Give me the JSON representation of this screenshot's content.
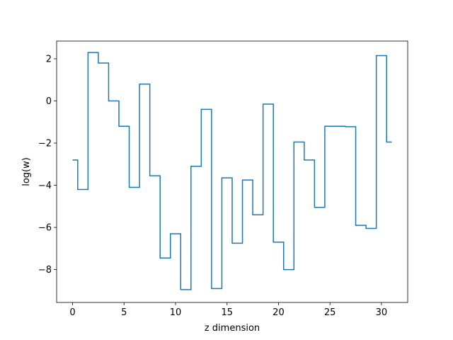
{
  "chart_data": {
    "type": "line",
    "drawstyle": "steps-mid",
    "xlabel": "z dimension",
    "ylabel": "log(w)",
    "xlim": [
      -1.55,
      32.55
    ],
    "ylim": [
      -9.56,
      2.84
    ],
    "x_ticks": [
      0,
      5,
      10,
      15,
      20,
      25,
      30
    ],
    "y_ticks": [
      -8,
      -6,
      -4,
      -2,
      0,
      2
    ],
    "grid": false,
    "line_color": "#1f77b4",
    "series": [
      {
        "x": [
          0,
          1,
          2,
          3,
          4,
          5,
          6,
          7,
          8,
          9,
          10,
          11,
          12,
          13,
          14,
          15,
          16,
          17,
          18,
          19,
          20,
          21,
          22,
          23,
          24,
          25,
          26,
          27,
          28,
          29,
          30,
          31
        ],
        "values": [
          -2.8,
          -4.2,
          2.3,
          1.8,
          0.0,
          -1.2,
          -4.1,
          0.8,
          -3.55,
          -7.45,
          -6.3,
          -8.95,
          -3.1,
          -0.4,
          -8.9,
          -3.65,
          -6.75,
          -3.75,
          -5.4,
          -0.15,
          -6.7,
          -8.0,
          -1.95,
          -2.8,
          -5.05,
          -1.2,
          -1.2,
          -1.22,
          -5.9,
          -6.05,
          2.15,
          -1.95
        ]
      }
    ]
  }
}
